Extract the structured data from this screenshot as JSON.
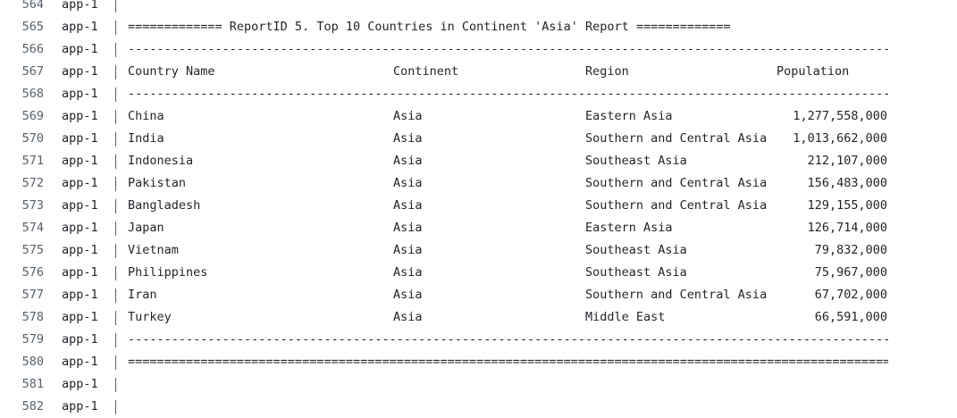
{
  "service": "app-1",
  "lines": [
    {
      "n": "564",
      "kind": "blank"
    },
    {
      "n": "565",
      "kind": "text",
      "text": "============= ReportID 5. Top 10 Countries in Continent 'Asia' Report ============="
    },
    {
      "n": "566",
      "kind": "rule",
      "ch": "-"
    },
    {
      "n": "567",
      "kind": "header"
    },
    {
      "n": "568",
      "kind": "rule",
      "ch": "-"
    },
    {
      "n": "569",
      "kind": "row",
      "row": 0
    },
    {
      "n": "570",
      "kind": "row",
      "row": 1
    },
    {
      "n": "571",
      "kind": "row",
      "row": 2
    },
    {
      "n": "572",
      "kind": "row",
      "row": 3
    },
    {
      "n": "573",
      "kind": "row",
      "row": 4
    },
    {
      "n": "574",
      "kind": "row",
      "row": 5
    },
    {
      "n": "575",
      "kind": "row",
      "row": 6
    },
    {
      "n": "576",
      "kind": "row",
      "row": 7
    },
    {
      "n": "577",
      "kind": "row",
      "row": 8
    },
    {
      "n": "578",
      "kind": "row",
      "row": 9
    },
    {
      "n": "579",
      "kind": "rule",
      "ch": "-"
    },
    {
      "n": "580",
      "kind": "rule",
      "ch": "="
    },
    {
      "n": "581",
      "kind": "blank"
    },
    {
      "n": "582",
      "kind": "blank"
    }
  ],
  "table": {
    "headers": [
      "Country Name",
      "Continent",
      "Region",
      "Population"
    ],
    "rows": [
      [
        "China",
        "Asia",
        "Eastern Asia",
        "1,277,558,000"
      ],
      [
        "India",
        "Asia",
        "Southern and Central Asia",
        "1,013,662,000"
      ],
      [
        "Indonesia",
        "Asia",
        "Southeast Asia",
        "212,107,000"
      ],
      [
        "Pakistan",
        "Asia",
        "Southern and Central Asia",
        "156,483,000"
      ],
      [
        "Bangladesh",
        "Asia",
        "Southern and Central Asia",
        "129,155,000"
      ],
      [
        "Japan",
        "Asia",
        "Eastern Asia",
        "126,714,000"
      ],
      [
        "Vietnam",
        "Asia",
        "Southeast Asia",
        "79,832,000"
      ],
      [
        "Philippines",
        "Asia",
        "Southeast Asia",
        "75,967,000"
      ],
      [
        "Iran",
        "Asia",
        "Southern and Central Asia",
        "67,702,000"
      ],
      [
        "Turkey",
        "Asia",
        "Middle East",
        "66,591,000"
      ]
    ]
  }
}
